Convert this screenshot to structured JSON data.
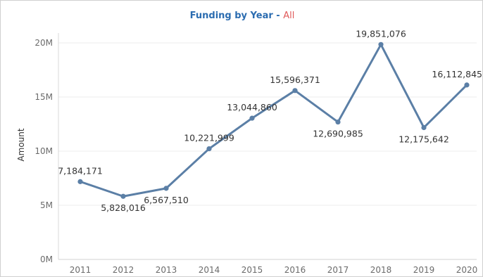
{
  "chart_data": {
    "type": "line",
    "title": "Funding by Year",
    "title_separator": "-",
    "title_filter": "All",
    "ylabel": "Amount",
    "xlabel": "",
    "categories": [
      "2011",
      "2012",
      "2013",
      "2014",
      "2015",
      "2016",
      "2017",
      "2018",
      "2019",
      "2020"
    ],
    "values": [
      7184171,
      5828016,
      6567510,
      10221999,
      13044860,
      15596371,
      12690985,
      19851076,
      12175642,
      16112845
    ],
    "data_labels": [
      "7,184,171",
      "5,828,016",
      "6,567,510",
      "10,221,999",
      "13,044,860",
      "15,596,371",
      "12,690,985",
      "19,851,076",
      "12,175,642",
      "16,112,845"
    ],
    "label_position": [
      "above",
      "below",
      "below",
      "above",
      "above",
      "above",
      "below",
      "above",
      "below",
      "above"
    ],
    "ylim": [
      0,
      20000000
    ],
    "yticks": [
      0,
      5000000,
      10000000,
      15000000,
      20000000
    ],
    "ytick_labels": [
      "0M",
      "5M",
      "10M",
      "15M",
      "20M"
    ],
    "grid": "horizontal",
    "line_color": "#5b7fa6",
    "legend": "none"
  }
}
